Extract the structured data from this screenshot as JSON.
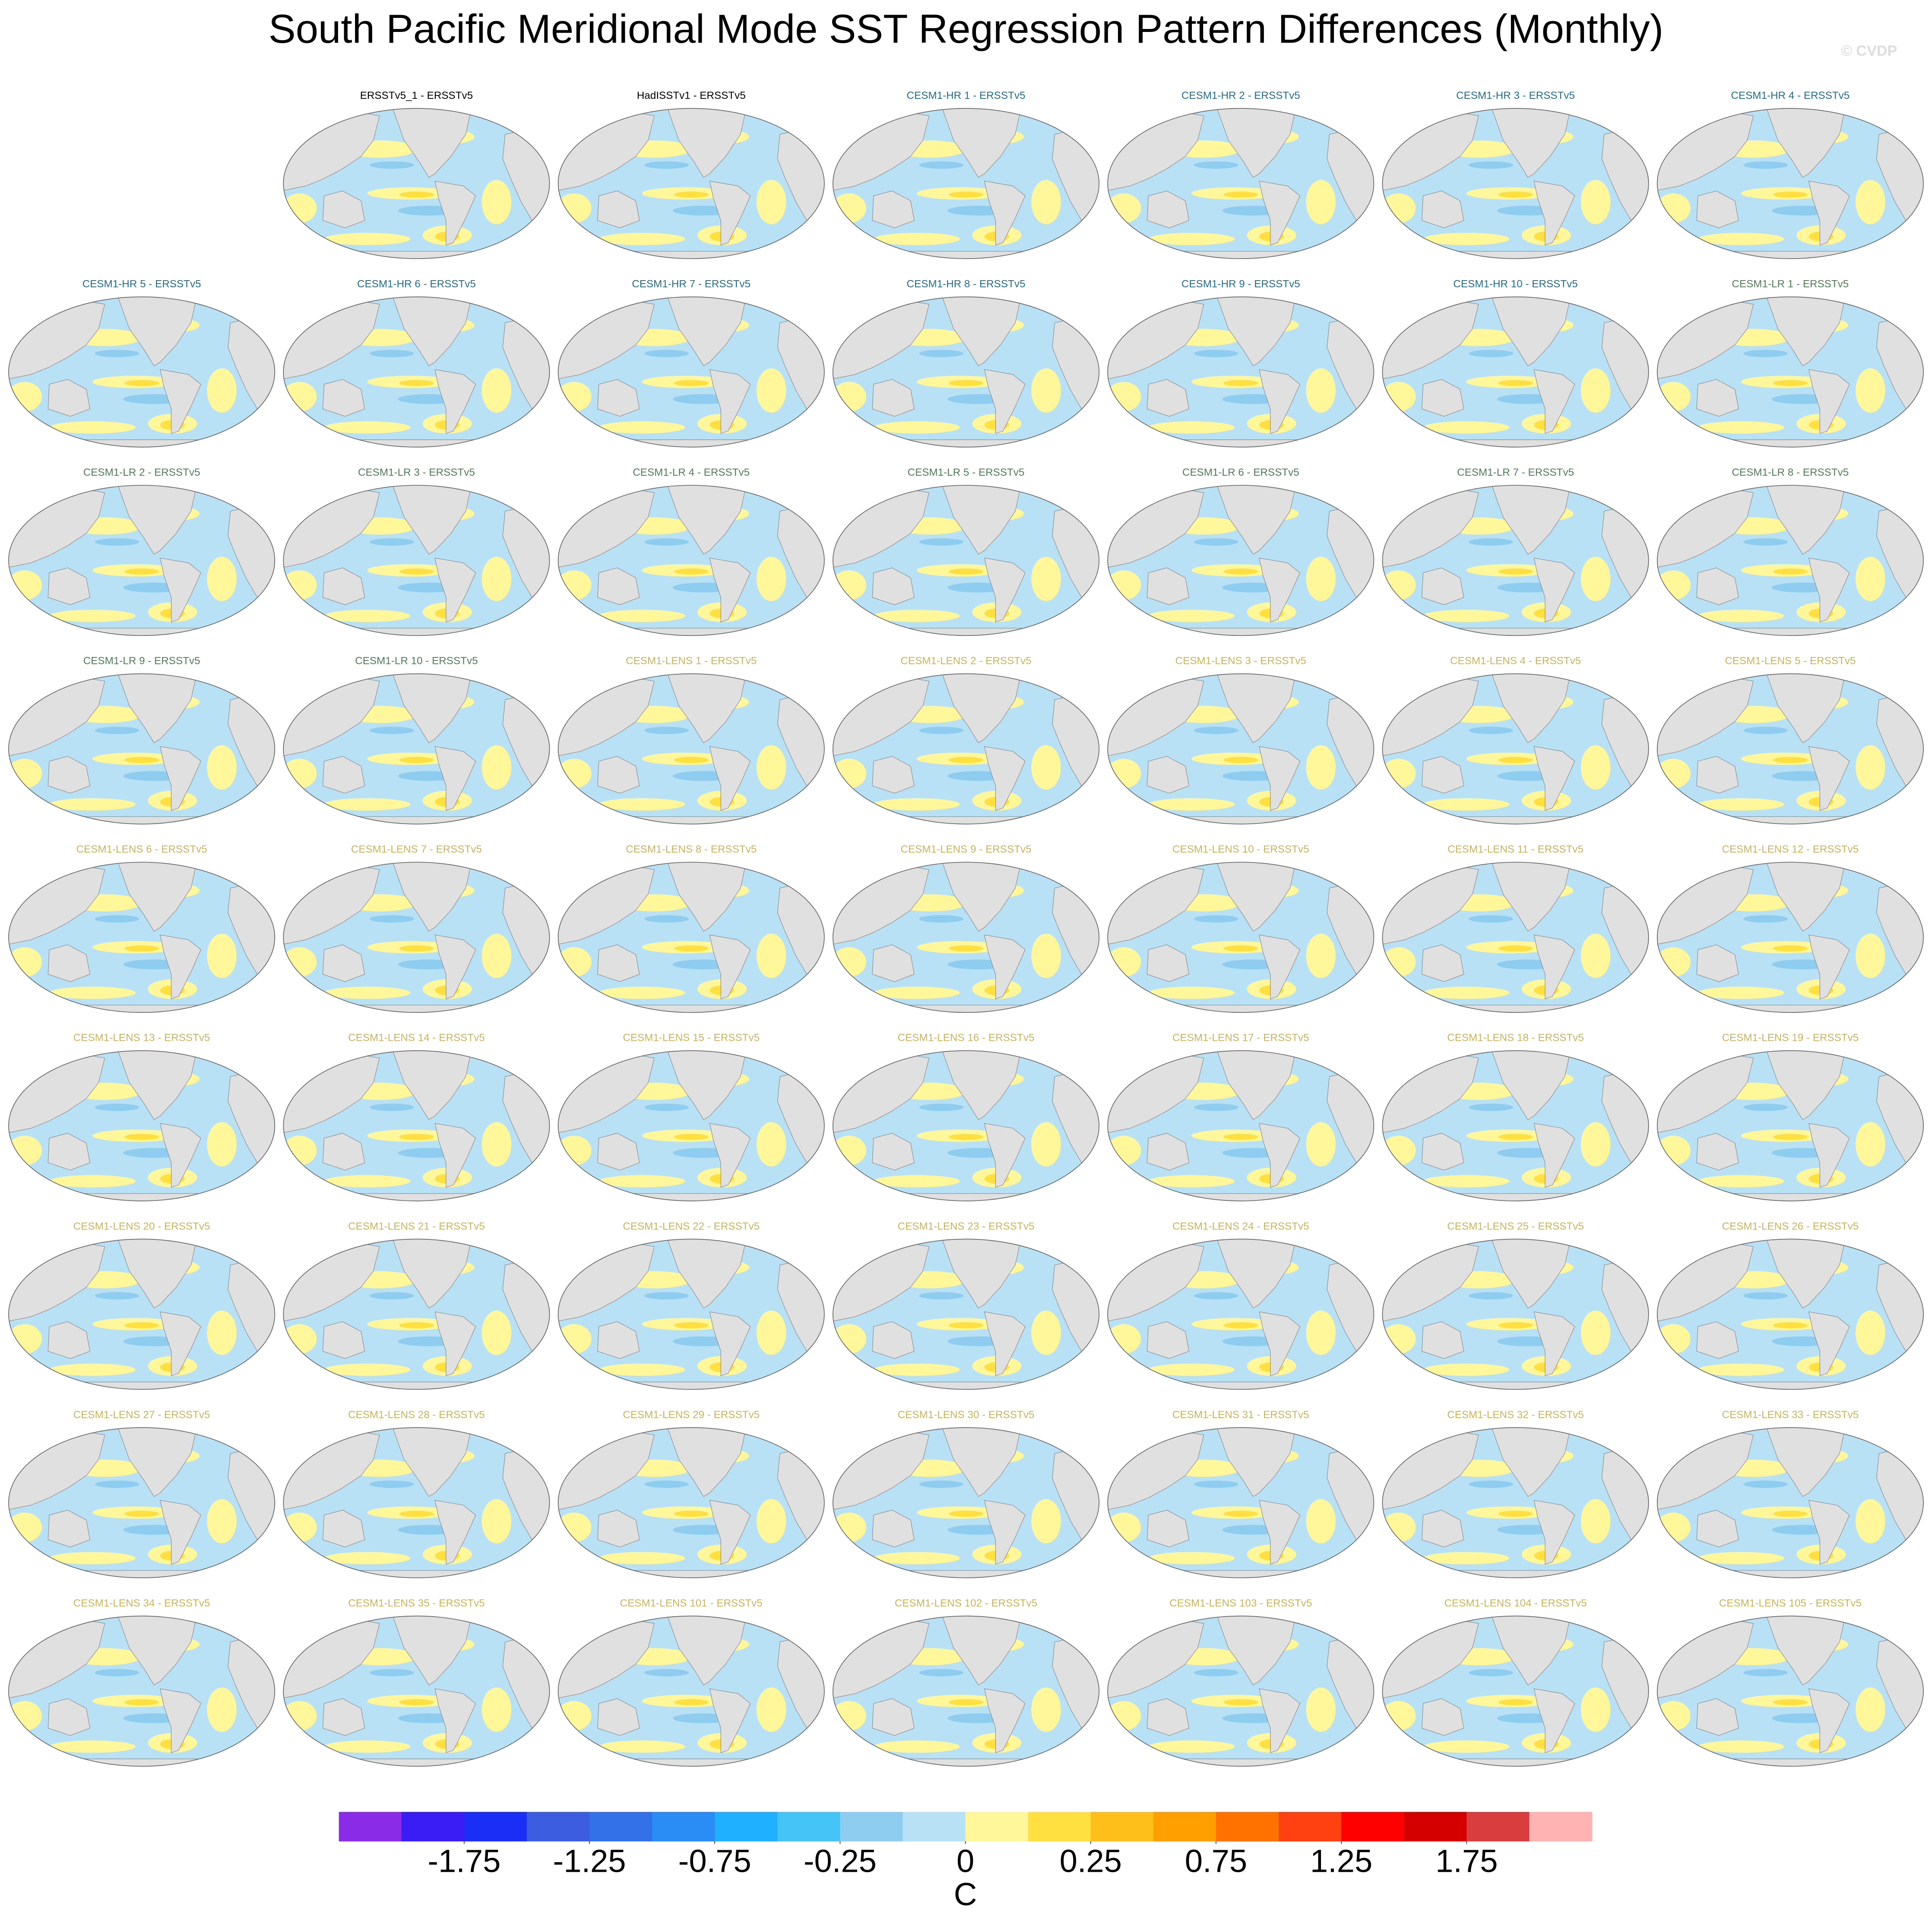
{
  "title": "South Pacific Meridional Mode SST Regression Pattern Differences (Monthly)",
  "watermark": "© CVDP",
  "panels": [
    {
      "title": "ERSSTv5_1 - ERSSTv5",
      "color": "#000000"
    },
    {
      "title": "HadISSTv1 - ERSSTv5",
      "color": "#000000"
    },
    {
      "title": "CESM1-HR 1 - ERSSTv5",
      "color": "#1f6e8c"
    },
    {
      "title": "CESM1-HR 2 - ERSSTv5",
      "color": "#1f6e8c"
    },
    {
      "title": "CESM1-HR 3 - ERSSTv5",
      "color": "#1f6e8c"
    },
    {
      "title": "CESM1-HR 4 - ERSSTv5",
      "color": "#1f6e8c"
    },
    {
      "title": "CESM1-HR 5 - ERSSTv5",
      "color": "#1f6e8c"
    },
    {
      "title": "CESM1-HR 6 - ERSSTv5",
      "color": "#1f6e8c"
    },
    {
      "title": "CESM1-HR 7 - ERSSTv5",
      "color": "#1f6e8c"
    },
    {
      "title": "CESM1-HR 8 - ERSSTv5",
      "color": "#1f6e8c"
    },
    {
      "title": "CESM1-HR 9 - ERSSTv5",
      "color": "#1f6e8c"
    },
    {
      "title": "CESM1-HR 10 - ERSSTv5",
      "color": "#1f6e8c"
    },
    {
      "title": "CESM1-LR 1 - ERSSTv5",
      "color": "#4f7d58"
    },
    {
      "title": "CESM1-LR 2 - ERSSTv5",
      "color": "#4f7d58"
    },
    {
      "title": "CESM1-LR 3 - ERSSTv5",
      "color": "#4f7d58"
    },
    {
      "title": "CESM1-LR 4 - ERSSTv5",
      "color": "#4f7d58"
    },
    {
      "title": "CESM1-LR 5 - ERSSTv5",
      "color": "#4f7d58"
    },
    {
      "title": "CESM1-LR 6 - ERSSTv5",
      "color": "#4f7d58"
    },
    {
      "title": "CESM1-LR 7 - ERSSTv5",
      "color": "#4f7d58"
    },
    {
      "title": "CESM1-LR 8 - ERSSTv5",
      "color": "#4f7d58"
    },
    {
      "title": "CESM1-LR 9 - ERSSTv5",
      "color": "#4f7d58"
    },
    {
      "title": "CESM1-LR 10 - ERSSTv5",
      "color": "#4f7d58"
    },
    {
      "title": "CESM1-LENS 1 - ERSSTv5",
      "color": "#c9b45c"
    },
    {
      "title": "CESM1-LENS 2 - ERSSTv5",
      "color": "#c9b45c"
    },
    {
      "title": "CESM1-LENS 3 - ERSSTv5",
      "color": "#c9b45c"
    },
    {
      "title": "CESM1-LENS 4 - ERSSTv5",
      "color": "#c9b45c"
    },
    {
      "title": "CESM1-LENS 5 - ERSSTv5",
      "color": "#c9b45c"
    },
    {
      "title": "CESM1-LENS 6 - ERSSTv5",
      "color": "#c9b45c"
    },
    {
      "title": "CESM1-LENS 7 - ERSSTv5",
      "color": "#c9b45c"
    },
    {
      "title": "CESM1-LENS 8 - ERSSTv5",
      "color": "#c9b45c"
    },
    {
      "title": "CESM1-LENS 9 - ERSSTv5",
      "color": "#c9b45c"
    },
    {
      "title": "CESM1-LENS 10 - ERSSTv5",
      "color": "#c9b45c"
    },
    {
      "title": "CESM1-LENS 11 - ERSSTv5",
      "color": "#c9b45c"
    },
    {
      "title": "CESM1-LENS 12 - ERSSTv5",
      "color": "#c9b45c"
    },
    {
      "title": "CESM1-LENS 13 - ERSSTv5",
      "color": "#c9b45c"
    },
    {
      "title": "CESM1-LENS 14 - ERSSTv5",
      "color": "#c9b45c"
    },
    {
      "title": "CESM1-LENS 15 - ERSSTv5",
      "color": "#c9b45c"
    },
    {
      "title": "CESM1-LENS 16 - ERSSTv5",
      "color": "#c9b45c"
    },
    {
      "title": "CESM1-LENS 17 - ERSSTv5",
      "color": "#c9b45c"
    },
    {
      "title": "CESM1-LENS 18 - ERSSTv5",
      "color": "#c9b45c"
    },
    {
      "title": "CESM1-LENS 19 - ERSSTv5",
      "color": "#c9b45c"
    },
    {
      "title": "CESM1-LENS 20 - ERSSTv5",
      "color": "#c9b45c"
    },
    {
      "title": "CESM1-LENS 21 - ERSSTv5",
      "color": "#c9b45c"
    },
    {
      "title": "CESM1-LENS 22 - ERSSTv5",
      "color": "#c9b45c"
    },
    {
      "title": "CESM1-LENS 23 - ERSSTv5",
      "color": "#c9b45c"
    },
    {
      "title": "CESM1-LENS 24 - ERSSTv5",
      "color": "#c9b45c"
    },
    {
      "title": "CESM1-LENS 25 - ERSSTv5",
      "color": "#c9b45c"
    },
    {
      "title": "CESM1-LENS 26 - ERSSTv5",
      "color": "#c9b45c"
    },
    {
      "title": "CESM1-LENS 27 - ERSSTv5",
      "color": "#c9b45c"
    },
    {
      "title": "CESM1-LENS 28 - ERSSTv5",
      "color": "#c9b45c"
    },
    {
      "title": "CESM1-LENS 29 - ERSSTv5",
      "color": "#c9b45c"
    },
    {
      "title": "CESM1-LENS 30 - ERSSTv5",
      "color": "#c9b45c"
    },
    {
      "title": "CESM1-LENS 31 - ERSSTv5",
      "color": "#c9b45c"
    },
    {
      "title": "CESM1-LENS 32 - ERSSTv5",
      "color": "#c9b45c"
    },
    {
      "title": "CESM1-LENS 33 - ERSSTv5",
      "color": "#c9b45c"
    },
    {
      "title": "CESM1-LENS 34 - ERSSTv5",
      "color": "#c9b45c"
    },
    {
      "title": "CESM1-LENS 35 - ERSSTv5",
      "color": "#c9b45c"
    },
    {
      "title": "CESM1-LENS 101 - ERSSTv5",
      "color": "#c9b45c"
    },
    {
      "title": "CESM1-LENS 102 - ERSSTv5",
      "color": "#c9b45c"
    },
    {
      "title": "CESM1-LENS 103 - ERSSTv5",
      "color": "#c9b45c"
    },
    {
      "title": "CESM1-LENS 104 - ERSSTv5",
      "color": "#c9b45c"
    },
    {
      "title": "CESM1-LENS 105 - ERSSTv5",
      "color": "#c9b45c"
    }
  ],
  "colorbar": {
    "colors": [
      "#8a2be8",
      "#3a1cf5",
      "#1a2ef5",
      "#3d5de0",
      "#3271e8",
      "#2a8cf5",
      "#1fb1ff",
      "#45c4f7",
      "#8fcdf0",
      "#b9e1f5",
      "#fff79a",
      "#ffe040",
      "#ffbf1a",
      "#ff9f00",
      "#ff7200",
      "#ff4010",
      "#ff0000",
      "#d40000",
      "#d93d3d",
      "#ffb3b3"
    ],
    "levels": [
      -2,
      -1.75,
      -1.5,
      -1.25,
      -1,
      -0.75,
      -0.5,
      -0.25,
      -0.1,
      0,
      0.1,
      0.25,
      0.5,
      0.75,
      1,
      1.25,
      1.5,
      1.75,
      2
    ],
    "ticks": [
      -1.75,
      -1.25,
      -0.75,
      -0.25,
      0,
      0.25,
      0.75,
      1.25,
      1.75
    ],
    "label": "C"
  }
}
